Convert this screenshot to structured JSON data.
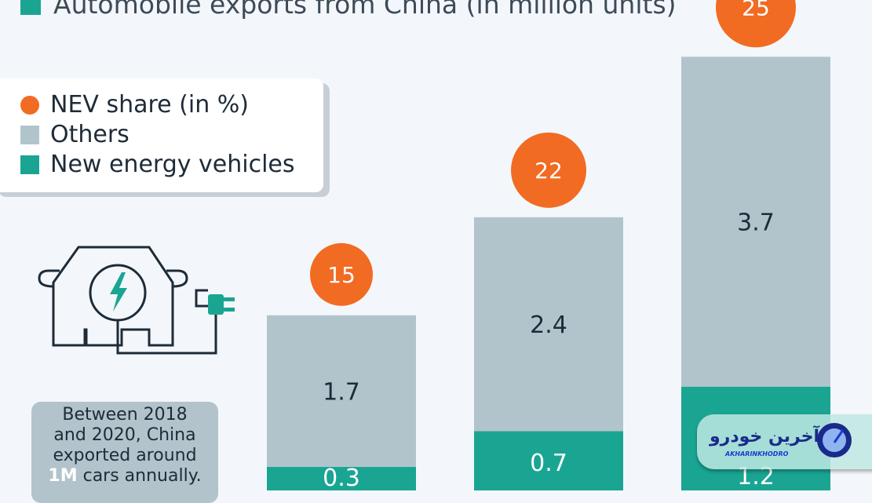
{
  "chart_data": {
    "type": "bar",
    "stacked": true,
    "title": "Automobile exports from China (in million units)",
    "legend": {
      "position": "top-left",
      "entries": [
        "NEV share (in %)",
        "Others",
        "New energy vehicles"
      ]
    },
    "series": [
      {
        "name": "New energy vehicles",
        "values": [
          0.3,
          0.7,
          1.2
        ],
        "color": "#1aa593"
      },
      {
        "name": "Others",
        "values": [
          1.7,
          2.4,
          3.7
        ],
        "color": "#b1c4cc"
      }
    ],
    "nev_share": {
      "name": "NEV share (in %)",
      "values": [
        15,
        22,
        25
      ],
      "color": "#f26b22"
    },
    "ylim": [
      0,
      5.5
    ],
    "grid": false
  },
  "note": {
    "line1": "Between 2018",
    "line2": "and 2020, China",
    "line3": "exported around",
    "highlight": "1M",
    "line4_rest": " cars annually."
  },
  "watermark": {
    "fa": "آخرین خودرو",
    "en": "AKHARINKHODRO"
  }
}
